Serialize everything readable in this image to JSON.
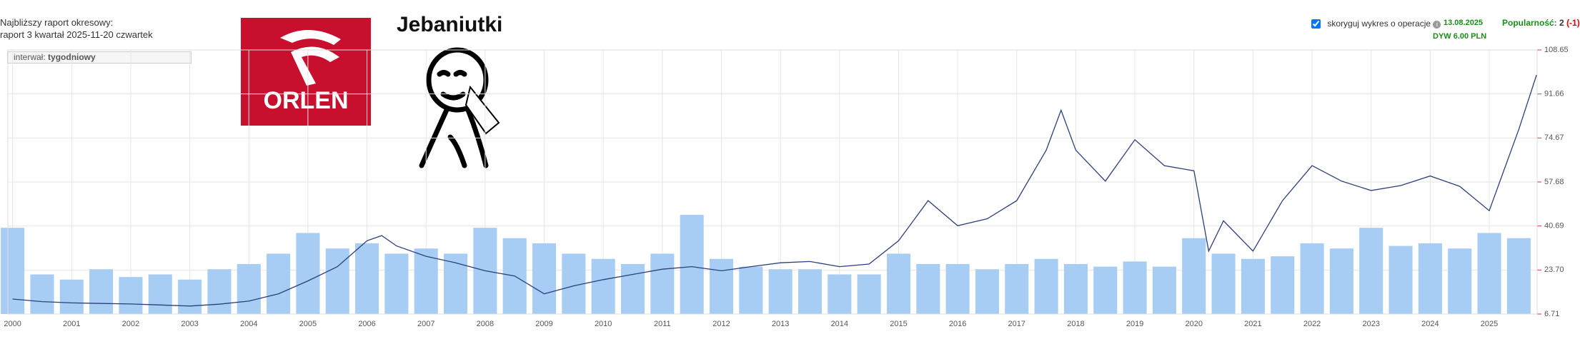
{
  "header": {
    "report_label": "Najbliższy raport okresowy:",
    "report_value": "raport 3 kwartał 2025-11-20 czwartek",
    "interval_label": "interwał:",
    "interval_value": "tygodniowy",
    "logo_text": "ORLEN",
    "meme_title": "Jebaniutki",
    "adjust_label": "skoryguj wykres o operacje",
    "dividend_date": "13.08.2025",
    "dividend": "DYW 6.00 PLN",
    "popularity_label": "Popularność:",
    "popularity_value": "2",
    "popularity_change": "(-1)"
  },
  "chart_data": {
    "type": "line",
    "xlim": [
      1999.92,
      2025.81
    ],
    "xticks": [
      2000,
      2001,
      2002,
      2003,
      2004,
      2005,
      2006,
      2007,
      2008,
      2009,
      2010,
      2011,
      2012,
      2013,
      2014,
      2015,
      2016,
      2017,
      2018,
      2019,
      2020,
      2021,
      2022,
      2023,
      2024,
      2025
    ],
    "ylim": [
      6.71,
      108.65
    ],
    "yticks": [
      6.71,
      {
        "value": 23.7,
        "label": "23.70"
      },
      40.69,
      57.68,
      74.67,
      91.66,
      108.65
    ],
    "grid": true,
    "series": [
      {
        "color": "#2b3f7a",
        "x": [
          2000,
          2000.5,
          2001,
          2001.5,
          2002,
          2002.5,
          2003,
          2003.5,
          2004,
          2004.5,
          2005,
          2005.5,
          2006,
          2006.25,
          2006.5,
          2007,
          2007.5,
          2008,
          2008.5,
          2009,
          2009.5,
          2010,
          2010.5,
          2011,
          2011.5,
          2012,
          2012.5,
          2013,
          2013.5,
          2014,
          2014.5,
          2015,
          2015.5,
          2016,
          2016.5,
          2017,
          2017.5,
          2017.75,
          2018,
          2018.5,
          2019,
          2019.5,
          2020,
          2020.25,
          2020.5,
          2021,
          2021.5,
          2022,
          2022.5,
          2023,
          2023.5,
          2024,
          2024.5,
          2025,
          2025.5,
          2025.8
        ],
        "values": [
          12.5,
          11.5,
          11,
          10.8,
          10.6,
          10.2,
          9.8,
          10.5,
          11.7,
          14.5,
          19.5,
          25,
          35,
          37,
          33,
          29,
          26.5,
          23.4,
          21.4,
          14.5,
          17.6,
          20,
          22,
          24,
          25,
          23.4,
          25,
          26.5,
          27,
          25,
          26,
          35,
          50.5,
          40.8,
          43.5,
          50.5,
          70,
          85.4,
          70,
          58,
          74,
          64,
          62,
          31,
          42.7,
          31,
          50.5,
          64,
          58,
          54.4,
          56.3,
          60,
          56,
          46.6,
          78,
          99
        ]
      },
      {
        "type": "bar",
        "color": "#a8cdf5",
        "x": [
          2000,
          2000.5,
          2001,
          2001.5,
          2002,
          2002.5,
          2003,
          2003.5,
          2004,
          2004.5,
          2005,
          2005.5,
          2006,
          2006.5,
          2007,
          2007.5,
          2008,
          2008.5,
          2009,
          2009.5,
          2010,
          2010.5,
          2011,
          2011.5,
          2012,
          2012.5,
          2013,
          2013.5,
          2014,
          2014.5,
          2015,
          2015.5,
          2016,
          2016.5,
          2017,
          2017.5,
          2018,
          2018.5,
          2019,
          2019.5,
          2020,
          2020.5,
          2021,
          2021.5,
          2022,
          2022.5,
          2023,
          2023.5,
          2024,
          2024.5,
          2025,
          2025.5
        ],
        "values": [
          40,
          22,
          20,
          24,
          21,
          22,
          20,
          24,
          26,
          30,
          38,
          32,
          34,
          30,
          32,
          30,
          40,
          36,
          34,
          30,
          28,
          26,
          30,
          45,
          28,
          25,
          24,
          24,
          22,
          22,
          30,
          26,
          26,
          24,
          26,
          28,
          26,
          25,
          27,
          25,
          36,
          30,
          28,
          29,
          34,
          32,
          40,
          33,
          34,
          32,
          38,
          36
        ]
      }
    ]
  }
}
